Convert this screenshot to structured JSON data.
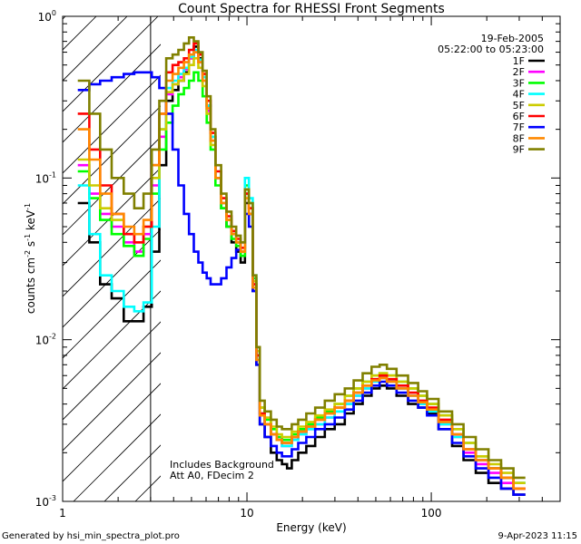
{
  "chart_data": {
    "type": "line",
    "title": "Count Spectra for RHESSI Front Segments",
    "xlabel": "Energy (keV)",
    "ylabel_parts": [
      "counts cm",
      "-2",
      " s",
      "-1",
      " keV",
      "-1"
    ],
    "xscale": "log",
    "yscale": "log",
    "xlim": [
      1,
      500
    ],
    "ylim": [
      0.001,
      1
    ],
    "x_ticks": [
      {
        "value": 1,
        "label": "1"
      },
      {
        "value": 10,
        "label": "10"
      },
      {
        "value": 100,
        "label": "100"
      }
    ],
    "y_ticks": [
      {
        "value": 0.001,
        "base": "10",
        "exp": "-3"
      },
      {
        "value": 0.01,
        "base": "10",
        "exp": "-2"
      },
      {
        "value": 0.1,
        "base": "10",
        "exp": "-1"
      },
      {
        "value": 1,
        "base": "10",
        "exp": "0"
      }
    ],
    "date": "19-Feb-2005",
    "time_range": "05:22:00 to 05:23:00",
    "attenuator_edge_kev": 3,
    "annotations": [
      "Includes Background",
      "Att A0, FDecim 2"
    ],
    "energy_bins": [
      1.3,
      1.5,
      1.7,
      2.0,
      2.3,
      2.6,
      2.9,
      3.2,
      3.5,
      3.8,
      4.1,
      4.4,
      4.7,
      5.0,
      5.3,
      5.6,
      5.9,
      6.2,
      6.5,
      7.0,
      7.5,
      8.0,
      8.5,
      9.0,
      9.5,
      10.0,
      10.5,
      11.0,
      11.5,
      12,
      13,
      14,
      15,
      16,
      17,
      18,
      20,
      22,
      25,
      28,
      32,
      36,
      40,
      45,
      50,
      55,
      60,
      70,
      80,
      90,
      100,
      120,
      140,
      160,
      190,
      220,
      260,
      300
    ],
    "series": [
      {
        "name": "1F",
        "color": "#000000",
        "values": [
          0.07,
          0.04,
          0.022,
          0.018,
          0.013,
          0.013,
          0.016,
          0.035,
          0.12,
          0.3,
          0.35,
          0.4,
          0.45,
          0.55,
          0.65,
          0.55,
          0.42,
          0.28,
          0.18,
          0.1,
          0.065,
          0.05,
          0.04,
          0.035,
          0.03,
          0.07,
          0.06,
          0.02,
          0.007,
          0.003,
          0.0025,
          0.002,
          0.0018,
          0.0017,
          0.0016,
          0.0018,
          0.002,
          0.0022,
          0.0025,
          0.0028,
          0.003,
          0.0035,
          0.004,
          0.0045,
          0.005,
          0.0052,
          0.005,
          0.0045,
          0.004,
          0.0038,
          0.0035,
          0.0028,
          0.0022,
          0.0018,
          0.0015,
          0.0013,
          0.0012,
          0.0011
        ]
      },
      {
        "name": "2F",
        "color": "#ff00ff",
        "values": [
          0.12,
          0.08,
          0.06,
          0.05,
          0.04,
          0.035,
          0.045,
          0.09,
          0.18,
          0.33,
          0.38,
          0.42,
          0.47,
          0.55,
          0.6,
          0.52,
          0.4,
          0.26,
          0.17,
          0.1,
          0.07,
          0.055,
          0.045,
          0.04,
          0.035,
          0.08,
          0.065,
          0.022,
          0.008,
          0.0035,
          0.003,
          0.0026,
          0.0024,
          0.0022,
          0.0022,
          0.0024,
          0.0026,
          0.0028,
          0.003,
          0.0033,
          0.0036,
          0.004,
          0.0045,
          0.005,
          0.0055,
          0.0058,
          0.0055,
          0.005,
          0.0045,
          0.004,
          0.0036,
          0.003,
          0.0025,
          0.002,
          0.0017,
          0.0015,
          0.0013,
          0.0012
        ]
      },
      {
        "name": "3F",
        "color": "#00ff00",
        "values": [
          0.11,
          0.075,
          0.055,
          0.045,
          0.038,
          0.033,
          0.042,
          0.08,
          0.15,
          0.22,
          0.28,
          0.33,
          0.36,
          0.4,
          0.45,
          0.4,
          0.32,
          0.22,
          0.15,
          0.09,
          0.065,
          0.05,
          0.042,
          0.038,
          0.033,
          0.09,
          0.07,
          0.024,
          0.009,
          0.0038,
          0.0032,
          0.0028,
          0.0025,
          0.0024,
          0.0024,
          0.0026,
          0.0028,
          0.003,
          0.0033,
          0.0036,
          0.004,
          0.0045,
          0.005,
          0.0055,
          0.006,
          0.0062,
          0.006,
          0.0055,
          0.005,
          0.0045,
          0.004,
          0.0034,
          0.0028,
          0.0023,
          0.0019,
          0.0016,
          0.0014,
          0.0013
        ]
      },
      {
        "name": "4F",
        "color": "#00ffff",
        "values": [
          0.09,
          0.045,
          0.025,
          0.02,
          0.016,
          0.015,
          0.017,
          0.05,
          0.2,
          0.36,
          0.4,
          0.44,
          0.48,
          0.56,
          0.62,
          0.54,
          0.42,
          0.28,
          0.18,
          0.1,
          0.07,
          0.055,
          0.045,
          0.04,
          0.035,
          0.1,
          0.075,
          0.025,
          0.009,
          0.0035,
          0.003,
          0.0026,
          0.0024,
          0.0022,
          0.0022,
          0.0024,
          0.0026,
          0.0028,
          0.003,
          0.0033,
          0.0036,
          0.004,
          0.0045,
          0.005,
          0.0055,
          0.0058,
          0.0055,
          0.005,
          0.0045,
          0.004,
          0.0036,
          0.003,
          0.0025,
          0.0021,
          0.0018,
          0.0016,
          0.0014,
          0.0013
        ]
      },
      {
        "name": "5F",
        "color": "#cccc00",
        "values": [
          0.13,
          0.09,
          0.065,
          0.055,
          0.045,
          0.04,
          0.05,
          0.1,
          0.2,
          0.34,
          0.38,
          0.4,
          0.44,
          0.5,
          0.55,
          0.48,
          0.37,
          0.25,
          0.16,
          0.1,
          0.07,
          0.055,
          0.045,
          0.04,
          0.035,
          0.085,
          0.065,
          0.023,
          0.0085,
          0.0038,
          0.0033,
          0.0029,
          0.0026,
          0.0025,
          0.0025,
          0.0027,
          0.0029,
          0.0031,
          0.0034,
          0.0037,
          0.004,
          0.0045,
          0.005,
          0.0055,
          0.006,
          0.0062,
          0.006,
          0.0055,
          0.005,
          0.0045,
          0.004,
          0.0034,
          0.0028,
          0.0023,
          0.0019,
          0.0017,
          0.0015,
          0.0013
        ]
      },
      {
        "name": "6F",
        "color": "#ff0000",
        "values": [
          0.25,
          0.15,
          0.09,
          0.06,
          0.045,
          0.04,
          0.05,
          0.12,
          0.25,
          0.45,
          0.5,
          0.52,
          0.55,
          0.62,
          0.68,
          0.58,
          0.44,
          0.3,
          0.19,
          0.11,
          0.075,
          0.058,
          0.047,
          0.042,
          0.037,
          0.08,
          0.065,
          0.022,
          0.008,
          0.0035,
          0.003,
          0.0026,
          0.0024,
          0.0023,
          0.0023,
          0.0025,
          0.0027,
          0.0029,
          0.0032,
          0.0035,
          0.0038,
          0.0042,
          0.0047,
          0.0052,
          0.0057,
          0.006,
          0.0057,
          0.0052,
          0.0047,
          0.0042,
          0.0038,
          0.0032,
          0.0026,
          0.0021,
          0.0018,
          0.0016,
          0.0014,
          0.0012
        ]
      },
      {
        "name": "7F",
        "color": "#0000ff",
        "values": [
          0.35,
          0.38,
          0.4,
          0.42,
          0.44,
          0.45,
          0.45,
          0.42,
          0.36,
          0.25,
          0.15,
          0.09,
          0.06,
          0.045,
          0.035,
          0.03,
          0.026,
          0.024,
          0.022,
          0.022,
          0.024,
          0.028,
          0.032,
          0.036,
          0.04,
          0.06,
          0.05,
          0.02,
          0.007,
          0.003,
          0.0025,
          0.0022,
          0.002,
          0.0019,
          0.0019,
          0.0021,
          0.0023,
          0.0025,
          0.0028,
          0.003,
          0.0033,
          0.0037,
          0.0042,
          0.0047,
          0.0052,
          0.0055,
          0.0052,
          0.0047,
          0.0042,
          0.0038,
          0.0034,
          0.0028,
          0.0023,
          0.0019,
          0.0016,
          0.0014,
          0.0012,
          0.0011
        ]
      },
      {
        "name": "8F",
        "color": "#ff8800",
        "values": [
          0.2,
          0.13,
          0.08,
          0.06,
          0.05,
          0.045,
          0.055,
          0.12,
          0.25,
          0.4,
          0.44,
          0.48,
          0.52,
          0.58,
          0.6,
          0.52,
          0.4,
          0.27,
          0.17,
          0.1,
          0.07,
          0.055,
          0.045,
          0.04,
          0.035,
          0.075,
          0.06,
          0.021,
          0.0075,
          0.0034,
          0.003,
          0.0026,
          0.0024,
          0.0023,
          0.0023,
          0.0025,
          0.0027,
          0.0029,
          0.0032,
          0.0035,
          0.0038,
          0.0042,
          0.0047,
          0.0052,
          0.0056,
          0.0058,
          0.0055,
          0.005,
          0.0045,
          0.0041,
          0.0037,
          0.0031,
          0.0026,
          0.0021,
          0.0018,
          0.0016,
          0.0014,
          0.0012
        ]
      },
      {
        "name": "9F",
        "color": "#808000",
        "values": [
          0.4,
          0.25,
          0.15,
          0.1,
          0.08,
          0.065,
          0.08,
          0.15,
          0.3,
          0.55,
          0.58,
          0.62,
          0.68,
          0.74,
          0.7,
          0.6,
          0.46,
          0.32,
          0.2,
          0.12,
          0.08,
          0.062,
          0.05,
          0.044,
          0.04,
          0.085,
          0.07,
          0.025,
          0.009,
          0.0042,
          0.0036,
          0.0032,
          0.0029,
          0.0028,
          0.0028,
          0.003,
          0.0032,
          0.0035,
          0.0038,
          0.0042,
          0.0046,
          0.005,
          0.0056,
          0.0062,
          0.0068,
          0.007,
          0.0066,
          0.006,
          0.0054,
          0.0048,
          0.0043,
          0.0036,
          0.003,
          0.0025,
          0.0021,
          0.0018,
          0.0016,
          0.0014
        ]
      }
    ]
  },
  "footer": {
    "generated_by": "Generated by hsi_min_spectra_plot.pro",
    "timestamp": "9-Apr-2023 11:15"
  }
}
